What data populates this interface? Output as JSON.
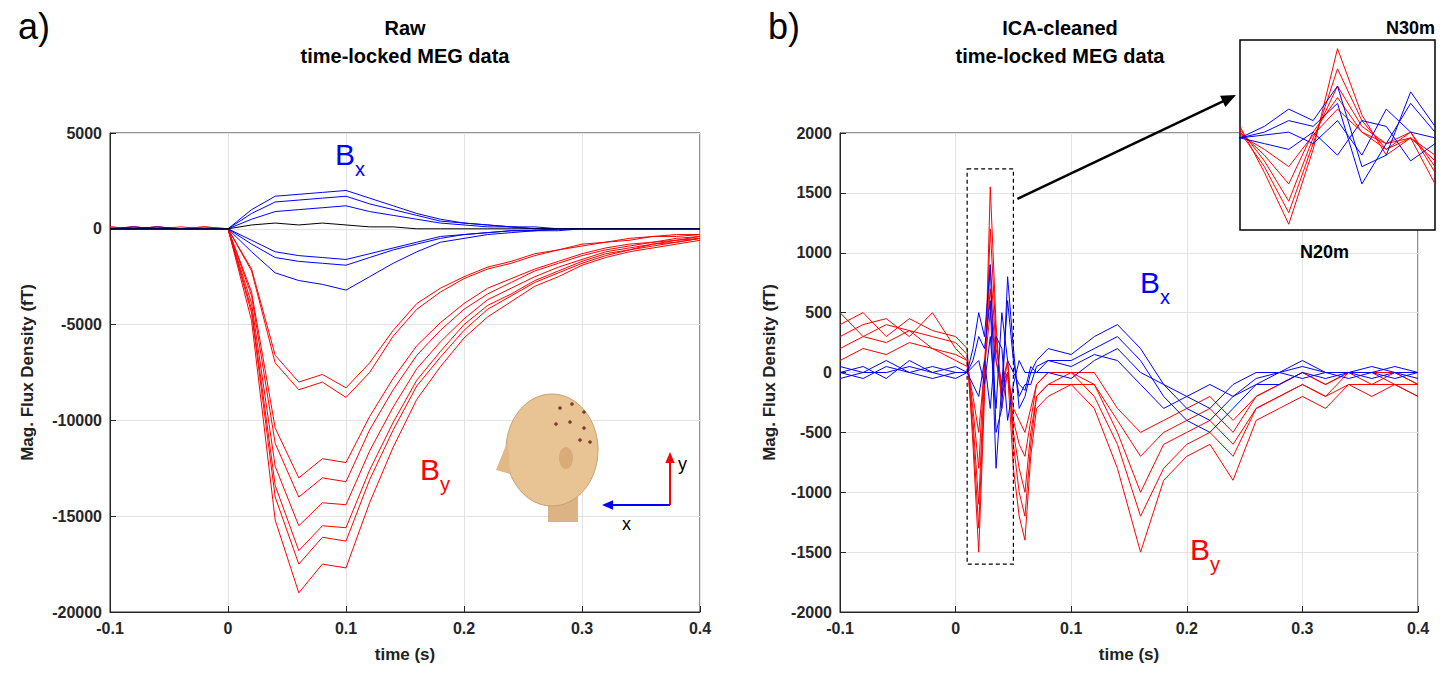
{
  "chart_data": [
    {
      "type": "line",
      "panel": "a)",
      "title": "Raw\ntime-locked MEG data",
      "x_label": "time (s)",
      "y_label": "Mag. Flux Density (fT)",
      "xlim": [
        -0.1,
        0.4
      ],
      "xticks": [
        -0.1,
        0,
        0.1,
        0.2,
        0.3,
        0.4
      ],
      "ylim": [
        -20000,
        5000
      ],
      "yticks": [
        -20000,
        -15000,
        -10000,
        -5000,
        0,
        5000
      ],
      "grid": true,
      "annotations": [
        "x",
        "y"
      ],
      "x": [
        -0.1,
        -0.08,
        -0.06,
        -0.04,
        -0.02,
        0,
        0.02,
        0.04,
        0.06,
        0.08,
        0.1,
        0.12,
        0.14,
        0.16,
        0.18,
        0.2,
        0.22,
        0.24,
        0.26,
        0.28,
        0.3,
        0.32,
        0.34,
        0.36,
        0.38,
        0.4
      ],
      "series": [
        {
          "name": "By",
          "color": "#ff0000",
          "values": [
            100,
            0,
            100,
            0,
            0,
            0,
            -4800,
            -15200,
            -19000,
            -17500,
            -17700,
            -14300,
            -11400,
            -8900,
            -7200,
            -5700,
            -4600,
            -3800,
            -3000,
            -2500,
            -1900,
            -1500,
            -1200,
            -1000,
            -800,
            -600
          ]
        },
        {
          "name": "By",
          "color": "#ff0000",
          "values": [
            0,
            100,
            0,
            0,
            100,
            0,
            -4400,
            -14000,
            -17500,
            -16100,
            -16300,
            -13100,
            -10500,
            -8200,
            -6700,
            -5300,
            -4200,
            -3500,
            -2800,
            -2300,
            -1800,
            -1400,
            -1100,
            -900,
            -700,
            -500
          ]
        },
        {
          "name": "By",
          "color": "#ff0000",
          "values": [
            100,
            0,
            0,
            0,
            0,
            0,
            -4200,
            -13400,
            -16800,
            -15500,
            -15600,
            -12600,
            -10100,
            -7900,
            -6400,
            -5000,
            -4000,
            -3400,
            -2700,
            -2200,
            -1700,
            -1300,
            -1100,
            -800,
            -700,
            -500
          ]
        },
        {
          "name": "By",
          "color": "#ff0000",
          "values": [
            0,
            0,
            0,
            0,
            0,
            0,
            -3900,
            -12400,
            -15500,
            -14300,
            -14400,
            -11600,
            -9300,
            -7300,
            -5900,
            -4700,
            -3700,
            -3100,
            -2500,
            -2000,
            -1600,
            -1200,
            -1000,
            -800,
            -600,
            -500
          ]
        },
        {
          "name": "By",
          "color": "#ff0000",
          "values": [
            0,
            0,
            100,
            0,
            0,
            0,
            -3500,
            -11200,
            -14000,
            -13000,
            -13200,
            -10500,
            -8400,
            -6600,
            -5300,
            -4200,
            -3400,
            -2800,
            -2200,
            -1800,
            -1400,
            -1100,
            -900,
            -700,
            -600,
            -400
          ]
        },
        {
          "name": "By",
          "color": "#ff0000",
          "values": [
            0,
            0,
            0,
            0,
            100,
            0,
            -3300,
            -10400,
            -13000,
            -12000,
            -12200,
            -9800,
            -7800,
            -6100,
            -4900,
            -3900,
            -3100,
            -2600,
            -2100,
            -1700,
            -1300,
            -1000,
            -800,
            -700,
            -500,
            -400
          ]
        },
        {
          "name": "By",
          "color": "#ff0000",
          "values": [
            0,
            100,
            0,
            0,
            0,
            0,
            -2200,
            -7000,
            -8400,
            -8000,
            -8800,
            -7500,
            -5600,
            -4200,
            -3300,
            -2600,
            -2100,
            -1800,
            -1400,
            -1100,
            -900,
            -700,
            -600,
            -400,
            -400,
            -300
          ]
        },
        {
          "name": "By",
          "color": "#ff0000",
          "values": [
            0,
            0,
            0,
            100,
            0,
            0,
            -2100,
            -6600,
            -8000,
            -7600,
            -8300,
            -7000,
            -5300,
            -3900,
            -3100,
            -2500,
            -2000,
            -1700,
            -1300,
            -1100,
            -800,
            -700,
            -500,
            -400,
            -300,
            -300
          ]
        },
        {
          "name": "Bx",
          "color": "#0000ff",
          "values": [
            0,
            0,
            100,
            0,
            0,
            0,
            1000,
            1700,
            1800,
            1900,
            2000,
            1600,
            1200,
            800,
            500,
            300,
            200,
            100,
            100,
            0,
            0,
            0,
            0,
            0,
            0,
            0
          ]
        },
        {
          "name": "Bx",
          "color": "#0000ff",
          "values": [
            0,
            100,
            0,
            0,
            0,
            0,
            800,
            1400,
            1500,
            1600,
            1700,
            1300,
            1000,
            700,
            400,
            300,
            200,
            100,
            0,
            0,
            0,
            0,
            0,
            0,
            0,
            0
          ]
        },
        {
          "name": "Bx",
          "color": "#0000ff",
          "values": [
            0,
            0,
            0,
            0,
            0,
            0,
            500,
            900,
            1000,
            1100,
            1200,
            900,
            700,
            500,
            300,
            200,
            100,
            100,
            0,
            0,
            0,
            0,
            0,
            0,
            0,
            0
          ]
        },
        {
          "name": "Bx",
          "color": "#0000ff",
          "values": [
            0,
            0,
            0,
            0,
            0,
            0,
            -600,
            -1200,
            -1400,
            -1500,
            -1600,
            -1300,
            -1000,
            -700,
            -400,
            -300,
            -200,
            -100,
            -100,
            0,
            0,
            0,
            0,
            0,
            0,
            0
          ]
        },
        {
          "name": "Bx",
          "color": "#0000ff",
          "values": [
            0,
            0,
            0,
            0,
            0,
            0,
            -800,
            -1500,
            -1700,
            -1800,
            -1900,
            -1500,
            -1100,
            -800,
            -500,
            -300,
            -200,
            -100,
            -100,
            0,
            0,
            0,
            0,
            0,
            0,
            0
          ]
        },
        {
          "name": "Bx",
          "color": "#0000ff",
          "values": [
            0,
            0,
            0,
            0,
            0,
            0,
            -1200,
            -2300,
            -2700,
            -2900,
            -3200,
            -2500,
            -1800,
            -1200,
            -700,
            -500,
            -300,
            -200,
            -100,
            -100,
            0,
            0,
            0,
            0,
            0,
            0
          ]
        },
        {
          "color": "#000000",
          "values": [
            0,
            0,
            0,
            0,
            0,
            0,
            200,
            300,
            200,
            300,
            200,
            100,
            100,
            0,
            0,
            0,
            0,
            0,
            0,
            0,
            0,
            0,
            0,
            0,
            0,
            0
          ]
        }
      ]
    },
    {
      "type": "line",
      "panel": "b)",
      "title": "ICA-cleaned\ntime-locked MEG data",
      "x_label": "time (s)",
      "y_label": "Mag. Flux Density (fT)",
      "xlim": [
        -0.1,
        0.4
      ],
      "xticks": [
        -0.1,
        0,
        0.1,
        0.2,
        0.3,
        0.4
      ],
      "ylim": [
        -2000,
        2000
      ],
      "yticks": [
        -2000,
        -1500,
        -1000,
        -500,
        0,
        500,
        1000,
        1500,
        2000
      ],
      "grid": true,
      "inset": {
        "xlim": [
          0.01,
          0.05
        ],
        "ylim": [
          -1600,
          1700
        ],
        "tick_labels": false,
        "grid": false,
        "annotations": [
          "N30m",
          "N20m"
        ]
      },
      "x": [
        -0.1,
        -0.08,
        -0.06,
        -0.04,
        -0.02,
        0,
        0.01,
        0.015,
        0.02,
        0.025,
        0.03,
        0.035,
        0.04,
        0.045,
        0.05,
        0.055,
        0.06,
        0.065,
        0.07,
        0.08,
        0.1,
        0.12,
        0.14,
        0.16,
        0.18,
        0.2,
        0.22,
        0.24,
        0.26,
        0.28,
        0.3,
        0.32,
        0.34,
        0.36,
        0.38,
        0.4
      ],
      "series": [
        {
          "name": "By",
          "color": "#ff0000",
          "values": [
            400,
            500,
            300,
            450,
            350,
            300,
            200,
            -600,
            -1500,
            -200,
            1550,
            400,
            -300,
            0,
            -800,
            -1200,
            -1400,
            -700,
            -300,
            -200,
            -100,
            -300,
            -800,
            -1500,
            -900,
            -700,
            -600,
            -900,
            -400,
            -300,
            -200,
            -300,
            -100,
            -200,
            -100,
            -200
          ]
        },
        {
          "name": "By",
          "color": "#ff0000",
          "values": [
            300,
            400,
            450,
            300,
            500,
            200,
            100,
            -500,
            -1300,
            -100,
            1200,
            300,
            -200,
            100,
            -600,
            -1000,
            -1200,
            -600,
            -200,
            -100,
            0,
            -200,
            -600,
            -1200,
            -800,
            -600,
            -500,
            -700,
            -300,
            -200,
            -100,
            -200,
            -100,
            -100,
            0,
            -100
          ]
        },
        {
          "name": "By",
          "color": "#ff0000",
          "values": [
            500,
            300,
            400,
            350,
            300,
            250,
            150,
            -400,
            -1100,
            0,
            900,
            200,
            -100,
            100,
            -500,
            -800,
            -1000,
            -500,
            -200,
            -100,
            -100,
            -100,
            -500,
            -1000,
            -600,
            -500,
            -400,
            -600,
            -300,
            -200,
            -100,
            -200,
            0,
            -100,
            -100,
            -200
          ]
        },
        {
          "name": "By",
          "color": "#ff0000",
          "values": [
            200,
            300,
            250,
            350,
            200,
            150,
            100,
            -300,
            -800,
            100,
            700,
            100,
            -200,
            0,
            -400,
            -600,
            -700,
            -400,
            -100,
            0,
            0,
            -100,
            -400,
            -700,
            -500,
            -400,
            -300,
            -500,
            -200,
            -100,
            0,
            -100,
            0,
            0,
            -100,
            -100
          ]
        },
        {
          "name": "By",
          "color": "#ff0000",
          "values": [
            100,
            200,
            150,
            250,
            200,
            100,
            50,
            -200,
            -500,
            50,
            500,
            100,
            -100,
            0,
            -300,
            -400,
            -500,
            -300,
            -100,
            0,
            0,
            0,
            -300,
            -500,
            -400,
            -300,
            -200,
            -400,
            -200,
            -100,
            0,
            -100,
            0,
            0,
            0,
            -100
          ]
        },
        {
          "name": "Bx",
          "color": "#0000ff",
          "values": [
            0,
            50,
            -50,
            100,
            0,
            50,
            0,
            200,
            500,
            300,
            900,
            -500,
            -300,
            800,
            200,
            -300,
            -200,
            0,
            100,
            200,
            150,
            300,
            400,
            200,
            -100,
            -300,
            -400,
            -200,
            -100,
            0,
            100,
            0,
            -50,
            0,
            50,
            0
          ]
        },
        {
          "name": "Bx",
          "color": "#0000ff",
          "values": [
            50,
            0,
            100,
            0,
            -50,
            0,
            0,
            100,
            300,
            200,
            600,
            -800,
            -100,
            600,
            100,
            -200,
            -100,
            -100,
            50,
            100,
            100,
            200,
            300,
            100,
            -200,
            -400,
            -500,
            -300,
            -100,
            -100,
            0,
            -50,
            0,
            50,
            0,
            -50
          ]
        },
        {
          "name": "Bx",
          "color": "#0000ff",
          "values": [
            -50,
            0,
            0,
            50,
            0,
            -50,
            0,
            -100,
            -200,
            100,
            -300,
            300,
            200,
            -400,
            -100,
            100,
            0,
            0,
            0,
            0,
            -50,
            100,
            200,
            0,
            -100,
            -200,
            -300,
            -100,
            0,
            0,
            -50,
            0,
            0,
            -50,
            0,
            0
          ]
        },
        {
          "name": "Bx",
          "color": "#0000ff",
          "values": [
            0,
            -50,
            50,
            0,
            50,
            0,
            0,
            50,
            100,
            -100,
            300,
            -300,
            500,
            100,
            0,
            -100,
            -150,
            50,
            0,
            100,
            50,
            150,
            100,
            -100,
            -300,
            -200,
            -100,
            -200,
            -50,
            0,
            50,
            0,
            0,
            0,
            -50,
            0
          ]
        }
      ]
    }
  ]
}
